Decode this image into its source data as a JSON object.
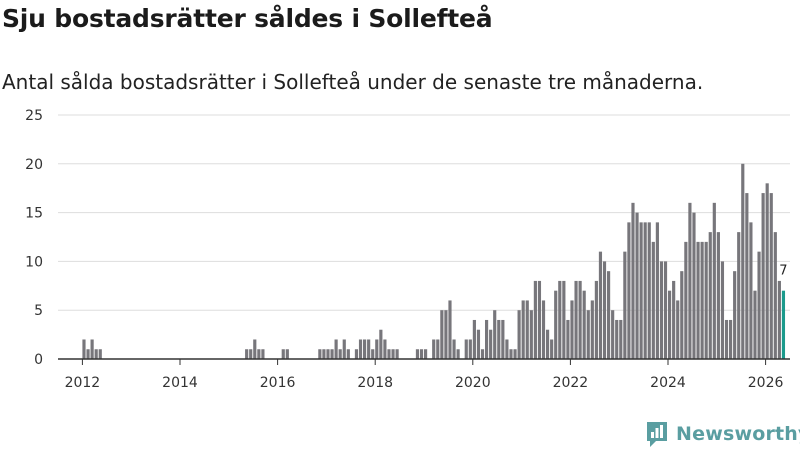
{
  "title": "Sju bostadsrätter såldes i Sollefteå",
  "subtitle": "Antal sålda bostadsrätter i Sollefteå under de senaste tre månaderna.",
  "brand": {
    "name": "Newsworthy",
    "logo_icon": "newsworthy-logo-icon",
    "color": "#5a9ea1"
  },
  "colors": {
    "bar": "#77767b",
    "highlight": "#1b9a8c",
    "grid": "#dddddd",
    "axis": "#333333"
  },
  "chart_data": {
    "type": "bar",
    "title": "Sju bostadsrätter såldes i Sollefteå",
    "xlabel": "",
    "ylabel": "",
    "ylim": [
      0,
      25
    ],
    "y_ticks": [
      "0",
      "5",
      "10",
      "15",
      "20",
      "25"
    ],
    "x_range": [
      2011.5,
      2026.5
    ],
    "x_ticks": [
      "2012",
      "2014",
      "2016",
      "2018",
      "2020",
      "2022",
      "2024",
      "2026"
    ],
    "grid": true,
    "start_month": "2012-01",
    "end_month": "2026-03",
    "series": [
      {
        "name": "Antal sålda bostadsrätter",
        "values": [
          2,
          1,
          2,
          1,
          1,
          0,
          0,
          0,
          0,
          0,
          0,
          0,
          0,
          0,
          0,
          0,
          0,
          0,
          0,
          0,
          0,
          0,
          0,
          0,
          0,
          0,
          0,
          0,
          0,
          0,
          0,
          0,
          0,
          0,
          0,
          0,
          0,
          0,
          0,
          0,
          1,
          1,
          2,
          1,
          1,
          0,
          0,
          0,
          0,
          1,
          1,
          0,
          0,
          0,
          0,
          0,
          0,
          0,
          1,
          1,
          1,
          1,
          2,
          1,
          2,
          1,
          0,
          1,
          2,
          2,
          2,
          1,
          2,
          3,
          2,
          1,
          1,
          1,
          0,
          0,
          0,
          0,
          1,
          1,
          1,
          0,
          2,
          2,
          5,
          5,
          6,
          2,
          1,
          0,
          2,
          2,
          4,
          3,
          1,
          4,
          3,
          5,
          4,
          4,
          2,
          1,
          1,
          5,
          6,
          6,
          5,
          8,
          8,
          6,
          3,
          2,
          7,
          8,
          8,
          4,
          6,
          8,
          8,
          7,
          5,
          6,
          8,
          11,
          10,
          9,
          5,
          4,
          4,
          11,
          14,
          16,
          15,
          14,
          14,
          14,
          12,
          14,
          10,
          10,
          7,
          8,
          6,
          9,
          12,
          16,
          15,
          12,
          12,
          12,
          13,
          16,
          13,
          10,
          4,
          4,
          9,
          13,
          20,
          17,
          14,
          7,
          11,
          17,
          18,
          17,
          13,
          8,
          7
        ]
      }
    ],
    "highlight_last": true,
    "last_value_label": "7"
  }
}
